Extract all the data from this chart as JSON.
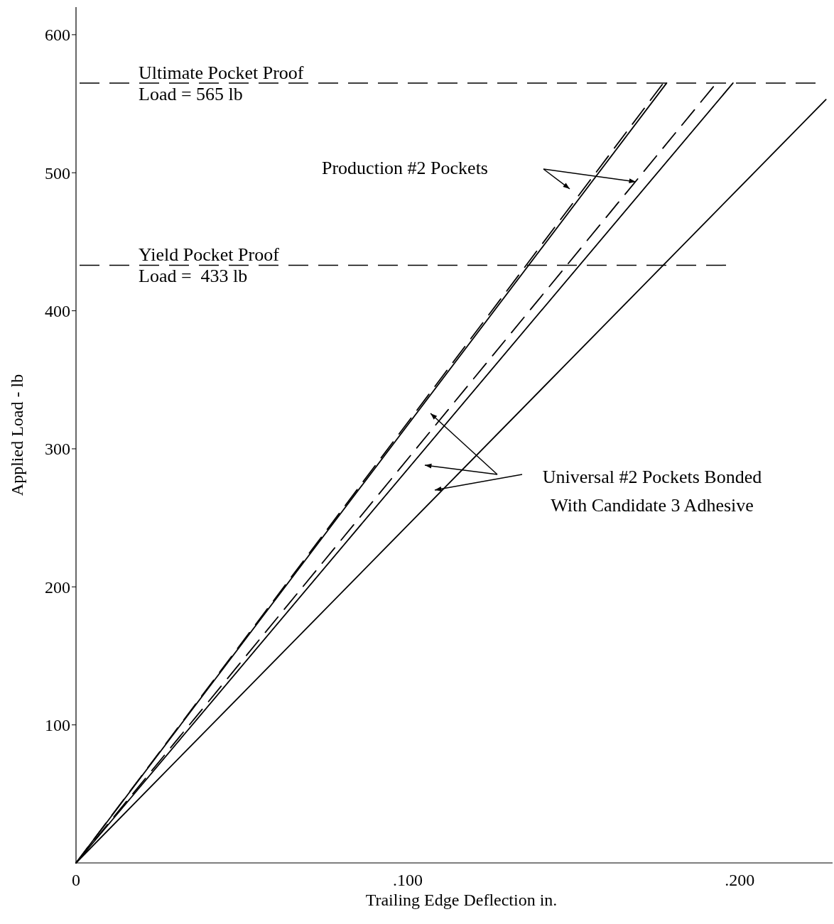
{
  "chart_data": {
    "type": "line",
    "xlabel": "Trailing Edge Deflection     in.",
    "ylabel": "Applied Load - lb",
    "xlim": [
      0,
      0.228
    ],
    "ylim": [
      0,
      620
    ],
    "xticks": [
      0,
      {
        "value": 0.1,
        "label": ".100"
      },
      {
        "value": 0.2,
        "label": ".200"
      }
    ],
    "yticks": [
      100,
      200,
      300,
      400,
      500,
      600
    ],
    "grid": false,
    "series": [
      {
        "color": "#000000",
        "line_style": "dashed",
        "x": [
          0,
          0.177
        ],
        "values": [
          0,
          565
        ]
      },
      {
        "color": "#000000",
        "line_style": "solid",
        "x": [
          0,
          0.178
        ],
        "values": [
          0,
          565
        ]
      },
      {
        "color": "#000000",
        "line_style": "dashed",
        "x": [
          0,
          0.193
        ],
        "values": [
          0,
          565
        ]
      },
      {
        "color": "#000000",
        "line_style": "solid",
        "x": [
          0,
          0.198
        ],
        "values": [
          0,
          565
        ]
      },
      {
        "color": "#000000",
        "line_style": "solid",
        "x": [
          0,
          0.226
        ],
        "values": [
          0,
          553
        ]
      }
    ],
    "ref_lines": [
      {
        "axis": "y",
        "value": 565,
        "label": "Ultimate Pocket Proof\nLoad = 565 lb",
        "line_style": "dashed"
      },
      {
        "axis": "y",
        "value": 433,
        "label": "Yield Pocket Proof\nLoad =  433 lb",
        "line_style": "dashed"
      }
    ],
    "annotations": [
      "Production #2 Pockets",
      "Universal #2 Pockets Bonded\nWith Candidate 3 Adhesive"
    ]
  }
}
